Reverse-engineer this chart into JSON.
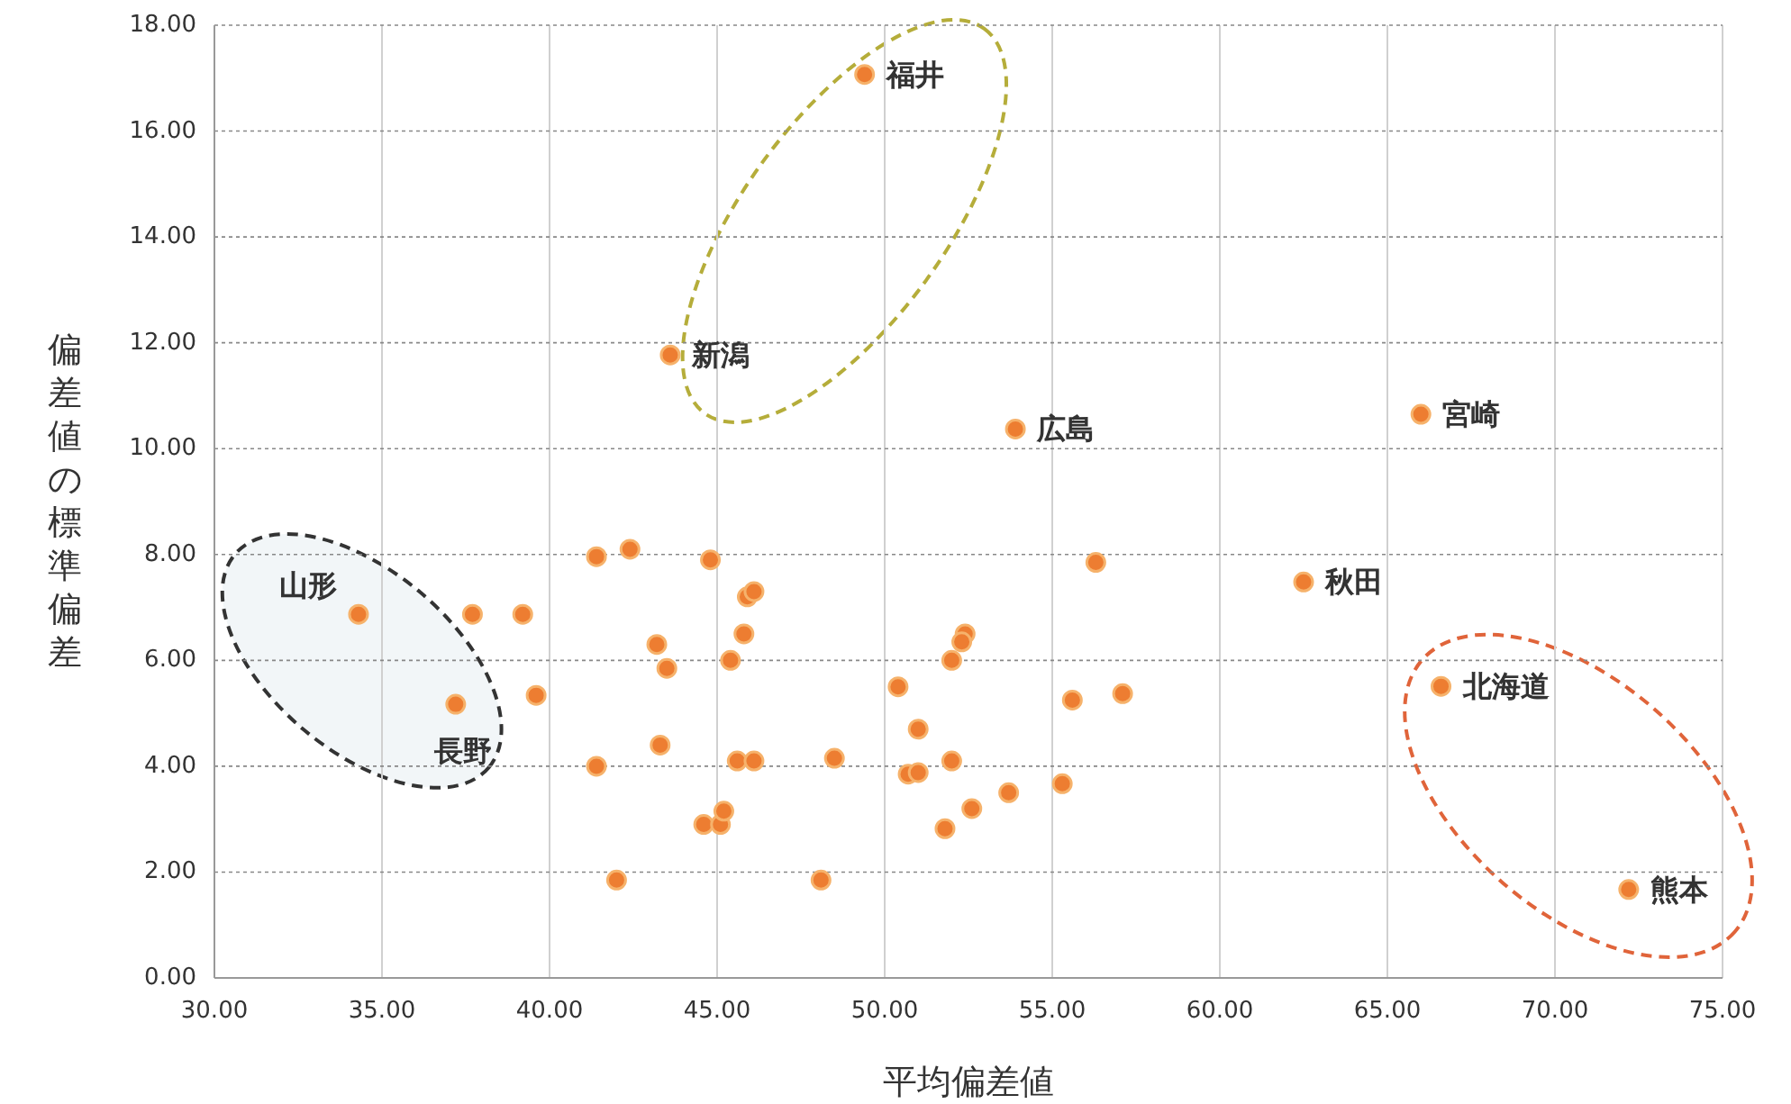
{
  "chart_data": {
    "type": "scatter",
    "xlabel": "平均偏差値",
    "ylabel": "偏差値の標準偏差",
    "x": [
      34.3,
      37.7,
      39.2,
      37.2,
      39.6,
      41.4,
      42.4,
      44.8,
      45.9,
      46.1,
      43.2,
      43.5,
      45.8,
      45.4,
      41.4,
      43.3,
      45.6,
      46.1,
      48.5,
      44.6,
      45.1,
      45.2,
      42.0,
      48.1,
      56.3,
      52.4,
      52.3,
      52.0,
      50.4,
      51.0,
      50.7,
      51.0,
      52.0,
      53.7,
      52.6,
      51.8,
      55.3,
      55.6,
      57.1,
      49.4,
      43.6,
      53.9,
      66.0,
      62.5,
      66.6,
      72.2
    ],
    "series": [
      {
        "color": "#ed7d31",
        "values": [
          6.87,
          6.87,
          6.87,
          5.17,
          5.34,
          7.96,
          8.1,
          7.9,
          7.2,
          7.3,
          6.3,
          5.85,
          6.5,
          6.0,
          4.0,
          4.4,
          4.1,
          4.1,
          4.15,
          2.9,
          2.9,
          3.15,
          1.85,
          1.85,
          7.85,
          6.5,
          6.35,
          6.0,
          5.5,
          4.7,
          3.85,
          3.88,
          4.1,
          3.5,
          3.2,
          2.82,
          3.67,
          5.25,
          5.37,
          17.07,
          11.77,
          10.37,
          10.65,
          7.48,
          5.51,
          1.67
        ]
      }
    ],
    "marker": "circle",
    "grid": true,
    "xlim": [
      30,
      75
    ],
    "xticks": [
      {
        "value": 30,
        "label": "30.00"
      },
      {
        "value": 35,
        "label": "35.00"
      },
      {
        "value": 40,
        "label": "40.00"
      },
      {
        "value": 45,
        "label": "45.00"
      },
      {
        "value": 50,
        "label": "50.00"
      },
      {
        "value": 55,
        "label": "55.00"
      },
      {
        "value": 60,
        "label": "60.00"
      },
      {
        "value": 65,
        "label": "65.00"
      },
      {
        "value": 70,
        "label": "70.00"
      },
      {
        "value": 75,
        "label": "75.00"
      }
    ],
    "ylim": [
      0,
      18
    ],
    "yticks": [
      {
        "value": 0,
        "label": "0.00"
      },
      {
        "value": 2,
        "label": "2.00"
      },
      {
        "value": 4,
        "label": "4.00"
      },
      {
        "value": 6,
        "label": "6.00"
      },
      {
        "value": 8,
        "label": "8.00"
      },
      {
        "value": 10,
        "label": "10.00"
      },
      {
        "value": 12,
        "label": "12.00"
      },
      {
        "value": 14,
        "label": "14.00"
      },
      {
        "value": 16,
        "label": "16.00"
      },
      {
        "value": 18,
        "label": "18.00"
      }
    ],
    "annotations": [
      {
        "text": "福井",
        "x": 49.4,
        "y": 17.07
      },
      {
        "text": "新潟",
        "x": 43.6,
        "y": 11.77
      },
      {
        "text": "広島",
        "x": 53.9,
        "y": 10.37
      },
      {
        "text": "宮崎",
        "x": 66.0,
        "y": 10.65
      },
      {
        "text": "秋田",
        "x": 62.5,
        "y": 7.48
      },
      {
        "text": "北海道",
        "x": 66.6,
        "y": 5.51
      },
      {
        "text": "熊本",
        "x": 72.2,
        "y": 1.67
      },
      {
        "text": "山形",
        "x": 34.3,
        "y": 6.87
      },
      {
        "text": "長野",
        "x": 37.2,
        "y": 5.17
      }
    ]
  }
}
